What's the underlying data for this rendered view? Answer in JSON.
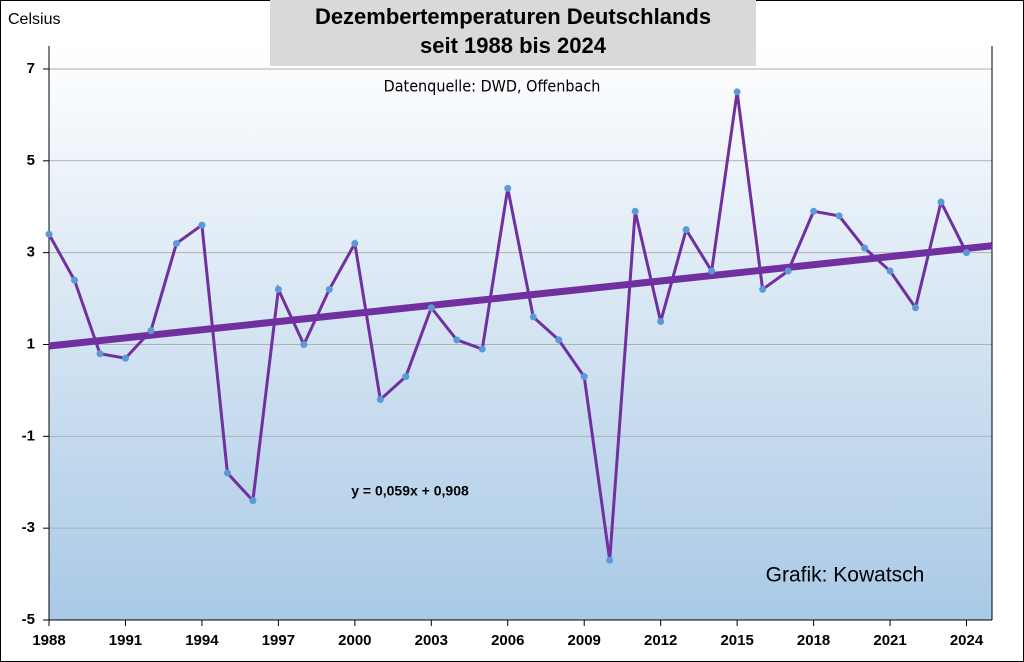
{
  "chart_data": {
    "type": "line",
    "title": [
      "Dezembertemperaturen Deutschlands",
      "seit 1988 bis 2024"
    ],
    "subtitle": "Datenquelle: DWD, Offenbach",
    "y_label": "Celsius",
    "annotation": "Grafik: Kowatsch",
    "x": [
      1988,
      1989,
      1990,
      1991,
      1992,
      1993,
      1994,
      1995,
      1996,
      1997,
      1998,
      1999,
      2000,
      2001,
      2002,
      2003,
      2004,
      2005,
      2006,
      2007,
      2008,
      2009,
      2010,
      2011,
      2012,
      2013,
      2014,
      2015,
      2016,
      2017,
      2018,
      2019,
      2020,
      2021,
      2022,
      2023,
      2024
    ],
    "series": [
      {
        "color": "#7030a0",
        "marker_color": "#5b9bd5",
        "values": [
          3.4,
          2.4,
          0.8,
          0.7,
          1.3,
          3.2,
          3.6,
          -1.8,
          -2.4,
          2.2,
          1.0,
          2.2,
          3.2,
          -0.2,
          0.3,
          1.8,
          1.1,
          0.9,
          4.4,
          1.6,
          1.1,
          0.3,
          -3.7,
          3.9,
          1.5,
          3.5,
          2.6,
          6.5,
          2.2,
          2.6,
          3.9,
          3.8,
          3.1,
          2.6,
          1.8,
          4.1,
          3.0
        ]
      }
    ],
    "trend": {
      "slope": 0.059,
      "intercept": 0.908,
      "label": "y = 0,059x + 0,908",
      "color": "#7030a0"
    },
    "xlim": [
      1988,
      2025
    ],
    "xticks": [
      1988,
      1991,
      1994,
      1997,
      2000,
      2003,
      2006,
      2009,
      2012,
      2015,
      2018,
      2021,
      2024
    ],
    "ylim": [
      -5,
      7.5
    ],
    "yticks": [
      -5,
      -3,
      -1,
      1,
      3,
      5,
      7
    ],
    "grid": true
  }
}
